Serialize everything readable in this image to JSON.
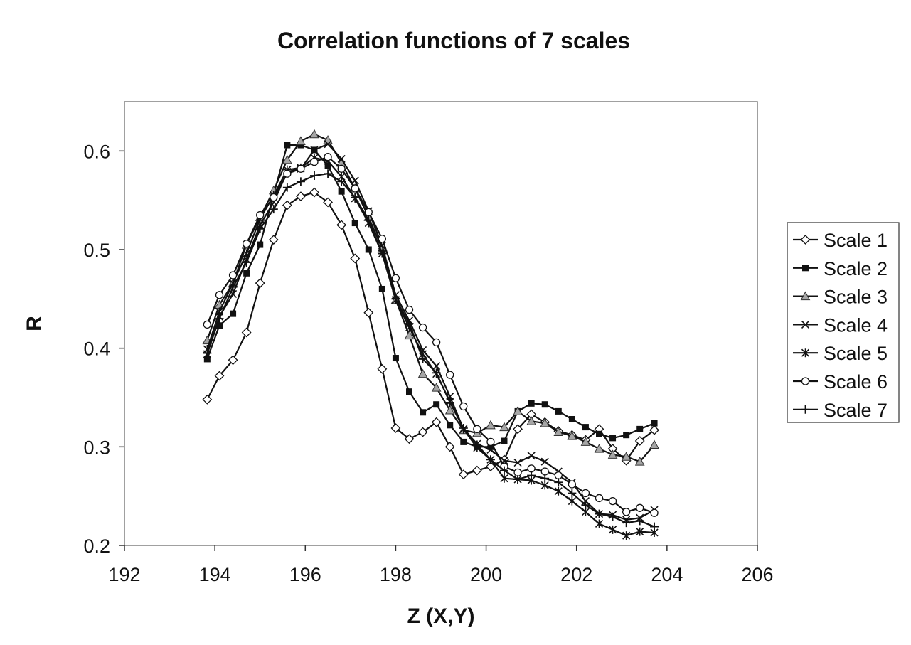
{
  "chart_data": {
    "type": "line",
    "title": "Correlation functions of 7 scales",
    "xlabel": "Z (X,Y)",
    "ylabel": "R",
    "xlim": [
      192,
      206
    ],
    "ylim": [
      0.2,
      0.65
    ],
    "xticks": [
      192,
      194,
      196,
      198,
      200,
      202,
      204,
      206
    ],
    "yticks": [
      0.2,
      0.3,
      0.4,
      0.5,
      0.6
    ],
    "xtick_labels": [
      "192",
      "194",
      "196",
      "198",
      "200",
      "202",
      "204",
      "206"
    ],
    "ytick_labels": [
      "0.2",
      "0.3",
      "0.4",
      "0.5",
      "0.6"
    ],
    "grid": false,
    "legend_position": "right",
    "x": [
      193.83,
      194.1,
      194.4,
      194.7,
      195.0,
      195.3,
      195.6,
      195.9,
      196.2,
      196.5,
      196.8,
      197.1,
      197.4,
      197.7,
      198.0,
      198.3,
      198.6,
      198.9,
      199.2,
      199.5,
      199.8,
      200.1,
      200.4,
      200.7,
      201.0,
      201.3,
      201.6,
      201.9,
      202.2,
      202.5,
      202.8,
      203.1,
      203.4,
      203.72
    ],
    "series": [
      {
        "name": "Scale 1",
        "marker": "diamond-open",
        "values": [
          0.348,
          0.372,
          0.388,
          0.416,
          0.466,
          0.51,
          0.545,
          0.554,
          0.558,
          0.548,
          0.525,
          0.491,
          0.436,
          0.379,
          0.319,
          0.308,
          0.315,
          0.325,
          0.3,
          0.272,
          0.276,
          0.28,
          0.287,
          0.318,
          0.333,
          0.325,
          0.316,
          0.312,
          0.307,
          0.318,
          0.298,
          0.286,
          0.306,
          0.317
        ]
      },
      {
        "name": "Scale 2",
        "marker": "square-filled",
        "values": [
          0.389,
          0.423,
          0.435,
          0.476,
          0.505,
          0.556,
          0.606,
          0.606,
          0.601,
          0.585,
          0.559,
          0.527,
          0.5,
          0.46,
          0.39,
          0.356,
          0.335,
          0.343,
          0.322,
          0.305,
          0.3,
          0.3,
          0.306,
          0.336,
          0.344,
          0.343,
          0.336,
          0.328,
          0.32,
          0.313,
          0.309,
          0.312,
          0.318,
          0.324
        ]
      },
      {
        "name": "Scale 3",
        "marker": "triangle-gray",
        "values": [
          0.408,
          0.444,
          0.466,
          0.505,
          0.533,
          0.56,
          0.591,
          0.61,
          0.617,
          0.611,
          0.588,
          0.562,
          0.533,
          0.501,
          0.449,
          0.413,
          0.374,
          0.36,
          0.337,
          0.317,
          0.314,
          0.322,
          0.32,
          0.336,
          0.326,
          0.324,
          0.315,
          0.311,
          0.305,
          0.298,
          0.292,
          0.29,
          0.285,
          0.302
        ]
      },
      {
        "name": "Scale 4",
        "marker": "x",
        "values": [
          0.394,
          0.432,
          0.455,
          0.49,
          0.525,
          0.548,
          0.579,
          0.582,
          0.601,
          0.607,
          0.592,
          0.57,
          0.539,
          0.504,
          0.454,
          0.428,
          0.398,
          0.382,
          0.351,
          0.318,
          0.303,
          0.297,
          0.286,
          0.284,
          0.291,
          0.285,
          0.275,
          0.264,
          0.245,
          0.232,
          0.231,
          0.226,
          0.228,
          0.236
        ]
      },
      {
        "name": "Scale 5",
        "marker": "star",
        "values": [
          0.399,
          0.437,
          0.466,
          0.496,
          0.531,
          0.555,
          0.581,
          0.583,
          0.593,
          0.59,
          0.574,
          0.552,
          0.527,
          0.496,
          0.449,
          0.421,
          0.394,
          0.374,
          0.346,
          0.318,
          0.299,
          0.287,
          0.268,
          0.267,
          0.266,
          0.261,
          0.255,
          0.245,
          0.234,
          0.222,
          0.216,
          0.21,
          0.214,
          0.213
        ]
      },
      {
        "name": "Scale 6",
        "marker": "circle-open",
        "values": [
          0.424,
          0.454,
          0.474,
          0.506,
          0.535,
          0.553,
          0.577,
          0.582,
          0.589,
          0.594,
          0.582,
          0.562,
          0.538,
          0.511,
          0.471,
          0.439,
          0.421,
          0.406,
          0.373,
          0.341,
          0.318,
          0.305,
          0.28,
          0.274,
          0.278,
          0.275,
          0.271,
          0.262,
          0.253,
          0.248,
          0.245,
          0.234,
          0.238,
          0.233
        ]
      },
      {
        "name": "Scale 7",
        "marker": "plus",
        "values": [
          0.395,
          0.43,
          0.462,
          0.487,
          0.521,
          0.541,
          0.563,
          0.569,
          0.575,
          0.577,
          0.569,
          0.553,
          0.53,
          0.496,
          0.45,
          0.425,
          0.389,
          0.375,
          0.345,
          0.319,
          0.302,
          0.287,
          0.276,
          0.267,
          0.271,
          0.268,
          0.264,
          0.253,
          0.241,
          0.232,
          0.229,
          0.223,
          0.225,
          0.219
        ]
      }
    ]
  }
}
